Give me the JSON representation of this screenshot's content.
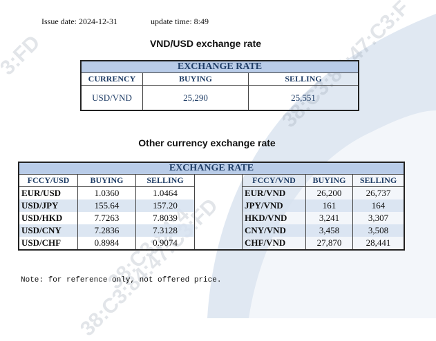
{
  "header": {
    "issue_date_label": "Issue date:",
    "issue_date": "2024-12-31",
    "update_time_label": "update time:",
    "update_time": "8:49"
  },
  "section1": {
    "title": "VND/USD exchange rate",
    "band": "EXCHANGE RATE",
    "columns": [
      "CURRENCY",
      "BUYING",
      "SELLING"
    ],
    "row": {
      "currency": "USD/VND",
      "buying": "25,290",
      "selling": "25,551"
    }
  },
  "section2": {
    "title": "Other currency exchange rate",
    "band": "EXCHANGE  RATE",
    "left_columns": [
      "FCCY/USD",
      "BUYING",
      "SELLING"
    ],
    "right_columns": [
      "FCCY/VND",
      "BUYING",
      "SELLING"
    ],
    "rows": [
      {
        "l_pair": "EUR/USD",
        "l_buy": "1.0360",
        "l_sell": "1.0464",
        "r_pair": "EUR/VND",
        "r_buy": "26,200",
        "r_sell": "26,737"
      },
      {
        "l_pair": "USD/JPY",
        "l_buy": "155.64",
        "l_sell": "157.20",
        "r_pair": "JPY/VND",
        "r_buy": "161",
        "r_sell": "164"
      },
      {
        "l_pair": "USD/HKD",
        "l_buy": "7.7263",
        "l_sell": "7.8039",
        "r_pair": "HKD/VND",
        "r_buy": "3,241",
        "r_sell": "3,307"
      },
      {
        "l_pair": "USD/CNY",
        "l_buy": "7.2836",
        "l_sell": "7.3128",
        "r_pair": "CNY/VND",
        "r_buy": "3,458",
        "r_sell": "3,508"
      },
      {
        "l_pair": "USD/CHF",
        "l_buy": "0.8984",
        "l_sell": "0.9074",
        "r_pair": "CHF/VND",
        "r_buy": "27,870",
        "r_sell": "28,441"
      }
    ]
  },
  "note": "Note: for reference only, not offered price.",
  "watermark": {
    "top_left": "3:FD",
    "top_right": "38:C3:84:47:C3:F",
    "middle": "38:C3:84:4",
    "bottom": "38:C3:84:47:C3:FD"
  },
  "colors": {
    "band": "#b9cce8",
    "header_text": "#1f3d66",
    "shade": "#d6e2f0"
  }
}
